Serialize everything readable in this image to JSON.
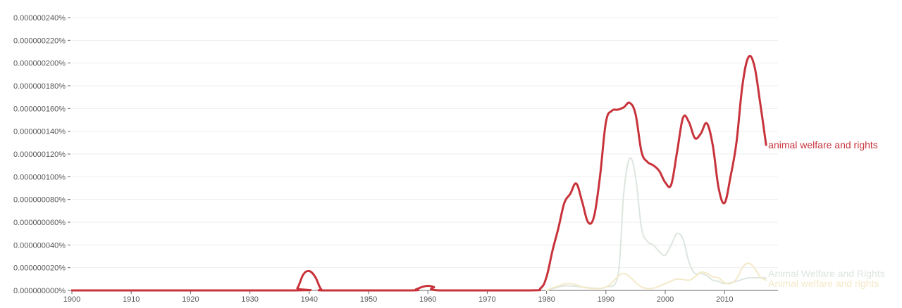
{
  "chart_data": {
    "type": "line",
    "grid": true,
    "y_axis": {
      "min": 0,
      "max": 2.4e-07,
      "ticks": [
        {
          "value": 0.0,
          "label": "0.000000000%"
        },
        {
          "value": 2e-08,
          "label": "0.000000020%"
        },
        {
          "value": 4e-08,
          "label": "0.000000040%"
        },
        {
          "value": 6e-08,
          "label": "0.000000060%"
        },
        {
          "value": 8e-08,
          "label": "0.000000080%"
        },
        {
          "value": 1e-07,
          "label": "0.000000100%"
        },
        {
          "value": 1.2e-07,
          "label": "0.000000120%"
        },
        {
          "value": 1.4e-07,
          "label": "0.000000140%"
        },
        {
          "value": 1.6e-07,
          "label": "0.000000160%"
        },
        {
          "value": 1.8e-07,
          "label": "0.000000180%"
        },
        {
          "value": 2e-07,
          "label": "0.000000200%"
        },
        {
          "value": 2.2e-07,
          "label": "0.000000220%"
        },
        {
          "value": 2.4e-07,
          "label": "0.000000240%"
        }
      ]
    },
    "x_axis": {
      "min": 1900,
      "max": 2019,
      "ticks": [
        {
          "value": 1900,
          "label": "1900"
        },
        {
          "value": 1910,
          "label": "1910"
        },
        {
          "value": 1920,
          "label": "1920"
        },
        {
          "value": 1930,
          "label": "1930"
        },
        {
          "value": 1940,
          "label": "1940"
        },
        {
          "value": 1950,
          "label": "1950"
        },
        {
          "value": 1960,
          "label": "1960"
        },
        {
          "value": 1970,
          "label": "1970"
        },
        {
          "value": 1980,
          "label": "1980"
        },
        {
          "value": 1990,
          "label": "1990"
        },
        {
          "value": 2000,
          "label": "2000"
        },
        {
          "value": 2010,
          "label": "2010"
        }
      ]
    },
    "series": [
      {
        "name": "animal welfare and rights",
        "color": "#c8333b",
        "emphasis": "primary",
        "points": [
          [
            1900,
            0.0
          ],
          [
            1937,
            0.0
          ],
          [
            1938,
            2e-09
          ],
          [
            1939,
            1.4e-08
          ],
          [
            1940,
            1.7e-08
          ],
          [
            1941,
            1.2e-08
          ],
          [
            1942,
            1e-09
          ],
          [
            1943,
            0.0
          ],
          [
            1957,
            0.0
          ],
          [
            1958,
            1e-09
          ],
          [
            1959,
            3e-09
          ],
          [
            1960,
            4e-09
          ],
          [
            1961,
            3e-09
          ],
          [
            1962,
            0.0
          ],
          [
            1977,
            0.0
          ],
          [
            1979,
            2e-09
          ],
          [
            1980,
            1.2e-08
          ],
          [
            1981,
            3.5e-08
          ],
          [
            1982,
            5.5e-08
          ],
          [
            1983,
            7.7e-08
          ],
          [
            1984,
            8.5e-08
          ],
          [
            1985,
            9.4e-08
          ],
          [
            1986,
            7.8e-08
          ],
          [
            1987,
            6e-08
          ],
          [
            1988,
            6.5e-08
          ],
          [
            1989,
            1e-07
          ],
          [
            1990,
            1.48e-07
          ],
          [
            1991,
            1.58e-07
          ],
          [
            1992,
            1.59e-07
          ],
          [
            1993,
            1.61e-07
          ],
          [
            1994,
            1.65e-07
          ],
          [
            1995,
            1.55e-07
          ],
          [
            1996,
            1.22e-07
          ],
          [
            1997,
            1.13e-07
          ],
          [
            1998,
            1.1e-07
          ],
          [
            1999,
            1.05e-07
          ],
          [
            2000,
            9.5e-08
          ],
          [
            2001,
            9.3e-08
          ],
          [
            2002,
            1.22e-07
          ],
          [
            2003,
            1.52e-07
          ],
          [
            2004,
            1.48e-07
          ],
          [
            2005,
            1.34e-07
          ],
          [
            2006,
            1.38e-07
          ],
          [
            2007,
            1.47e-07
          ],
          [
            2008,
            1.28e-07
          ],
          [
            2009,
            9e-08
          ],
          [
            2010,
            7.7e-08
          ],
          [
            2011,
            1e-07
          ],
          [
            2012,
            1.3e-07
          ],
          [
            2013,
            1.8e-07
          ],
          [
            2014,
            2.05e-07
          ],
          [
            2015,
            1.98e-07
          ],
          [
            2016,
            1.65e-07
          ],
          [
            2017,
            1.28e-07
          ]
        ],
        "end_label": "animal welfare and rights"
      },
      {
        "name": "Animal Welfare and Rights",
        "color": "#dde6de",
        "emphasis": "faded",
        "points": [
          [
            1980,
            0.0
          ],
          [
            1983,
            4e-09
          ],
          [
            1986,
            3e-09
          ],
          [
            1988,
            2e-09
          ],
          [
            1990,
            3e-09
          ],
          [
            1992,
            1.2e-08
          ],
          [
            1993,
            8.5e-08
          ],
          [
            1994,
            1.16e-07
          ],
          [
            1995,
            1e-07
          ],
          [
            1996,
            5.5e-08
          ],
          [
            1997,
            4.3e-08
          ],
          [
            1998,
            4e-08
          ],
          [
            1999,
            3.4e-08
          ],
          [
            2000,
            3.1e-08
          ],
          [
            2001,
            4e-08
          ],
          [
            2002,
            5e-08
          ],
          [
            2003,
            4.5e-08
          ],
          [
            2004,
            2.5e-08
          ],
          [
            2005,
            1.5e-08
          ],
          [
            2006,
            1.5e-08
          ],
          [
            2007,
            1.3e-08
          ],
          [
            2008,
            9e-09
          ],
          [
            2009,
            8e-09
          ],
          [
            2010,
            6e-09
          ],
          [
            2012,
            8e-09
          ],
          [
            2014,
            1.1e-08
          ],
          [
            2017,
            1.1e-08
          ]
        ],
        "end_label": "Animal Welfare and Rights"
      },
      {
        "name": "Animal welfare and rights",
        "color": "#f4e9c9",
        "emphasis": "faded",
        "points": [
          [
            1980,
            0.0
          ],
          [
            1982,
            4e-09
          ],
          [
            1984,
            6e-09
          ],
          [
            1987,
            2e-09
          ],
          [
            1990,
            3e-09
          ],
          [
            1992,
            1.2e-08
          ],
          [
            1993,
            1.5e-08
          ],
          [
            1994,
            1.2e-08
          ],
          [
            1996,
            3e-09
          ],
          [
            1998,
            2e-09
          ],
          [
            2000,
            6e-09
          ],
          [
            2002,
            1e-08
          ],
          [
            2004,
            9e-09
          ],
          [
            2005,
            1.2e-08
          ],
          [
            2006,
            1.6e-08
          ],
          [
            2007,
            1.5e-08
          ],
          [
            2008,
            1.2e-08
          ],
          [
            2009,
            1.1e-08
          ],
          [
            2010,
            7e-09
          ],
          [
            2011,
            6e-09
          ],
          [
            2012,
            1e-08
          ],
          [
            2013,
            2e-08
          ],
          [
            2014,
            2.4e-08
          ],
          [
            2015,
            2e-08
          ],
          [
            2016,
            1.2e-08
          ],
          [
            2017,
            9e-09
          ]
        ],
        "end_label": "Animal welfare and rights"
      }
    ]
  }
}
